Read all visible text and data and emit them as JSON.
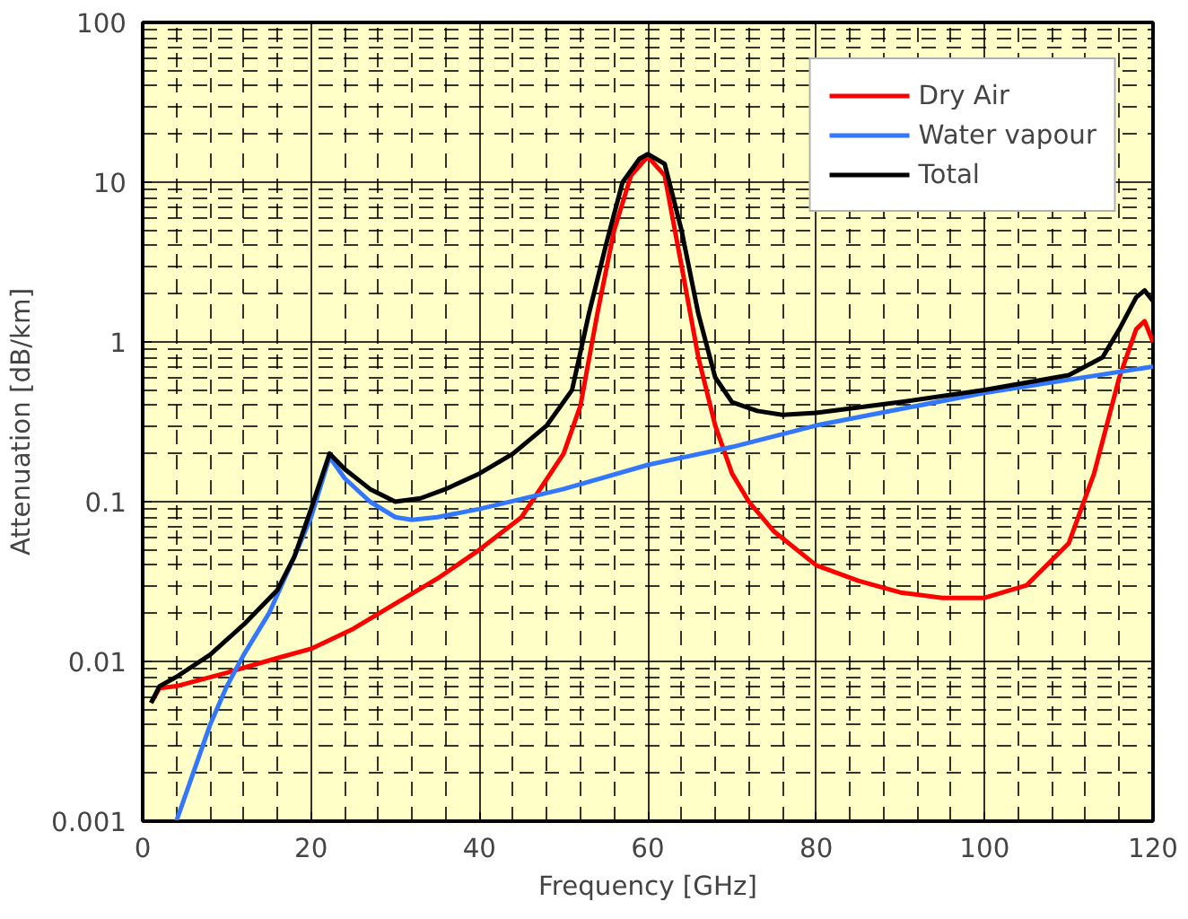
{
  "chart_data": {
    "type": "line",
    "xlabel": "Frequency [GHz]",
    "ylabel": "Attenuation [dB/km]",
    "log": "y",
    "grid": true,
    "legend": "top right",
    "marker": "none",
    "line_style": "solid",
    "xlim": [
      0,
      120
    ],
    "xticks": [
      0,
      20,
      40,
      60,
      80,
      100,
      120
    ],
    "ylim": [
      0.001,
      100
    ],
    "yticks": [
      0.001,
      0.01,
      0.1,
      1,
      10,
      100
    ],
    "series": [
      {
        "name": "Dry Air",
        "color": "#ff0000",
        "x": [
          1,
          2,
          4,
          10,
          16,
          20,
          25,
          30,
          35,
          40,
          45,
          50,
          52,
          54,
          56,
          58,
          60,
          62,
          64,
          66,
          68,
          70,
          72,
          75,
          80,
          85,
          90,
          95,
          100,
          105,
          110,
          113,
          116,
          118,
          119,
          120
        ],
        "values": [
          0.0055,
          0.0068,
          0.007,
          0.0085,
          0.0105,
          0.012,
          0.016,
          0.023,
          0.033,
          0.05,
          0.08,
          0.2,
          0.4,
          1.5,
          5,
          11,
          14.5,
          11,
          3,
          0.8,
          0.3,
          0.15,
          0.1,
          0.065,
          0.04,
          0.032,
          0.027,
          0.025,
          0.025,
          0.03,
          0.055,
          0.15,
          0.6,
          1.2,
          1.35,
          1.0
        ]
      },
      {
        "name": "Water vapour",
        "color": "#3377ff",
        "x": [
          4,
          6,
          8,
          10,
          12,
          15,
          18,
          20,
          22.2,
          24,
          27,
          30,
          32,
          35,
          40,
          50,
          60,
          70,
          80,
          90,
          100,
          110,
          120
        ],
        "values": [
          0.001,
          0.002,
          0.004,
          0.007,
          0.011,
          0.02,
          0.045,
          0.08,
          0.19,
          0.14,
          0.1,
          0.08,
          0.077,
          0.08,
          0.09,
          0.12,
          0.17,
          0.22,
          0.3,
          0.38,
          0.48,
          0.58,
          0.7
        ]
      },
      {
        "name": "Total",
        "color": "#000000",
        "x": [
          1,
          2,
          4,
          8,
          12,
          16,
          18,
          20,
          22.2,
          24,
          27,
          30,
          33,
          36,
          40,
          44,
          48,
          51,
          53,
          55,
          57,
          59,
          60,
          62,
          64,
          66,
          68,
          70,
          73,
          76,
          80,
          90,
          100,
          110,
          114,
          116,
          118,
          119,
          120
        ],
        "values": [
          0.0055,
          0.007,
          0.008,
          0.011,
          0.017,
          0.028,
          0.045,
          0.09,
          0.2,
          0.16,
          0.12,
          0.1,
          0.105,
          0.12,
          0.15,
          0.2,
          0.3,
          0.5,
          1.5,
          4,
          10,
          14,
          15,
          13,
          5,
          1.5,
          0.6,
          0.42,
          0.37,
          0.35,
          0.36,
          0.42,
          0.5,
          0.62,
          0.8,
          1.2,
          1.9,
          2.1,
          1.8
        ]
      }
    ]
  }
}
